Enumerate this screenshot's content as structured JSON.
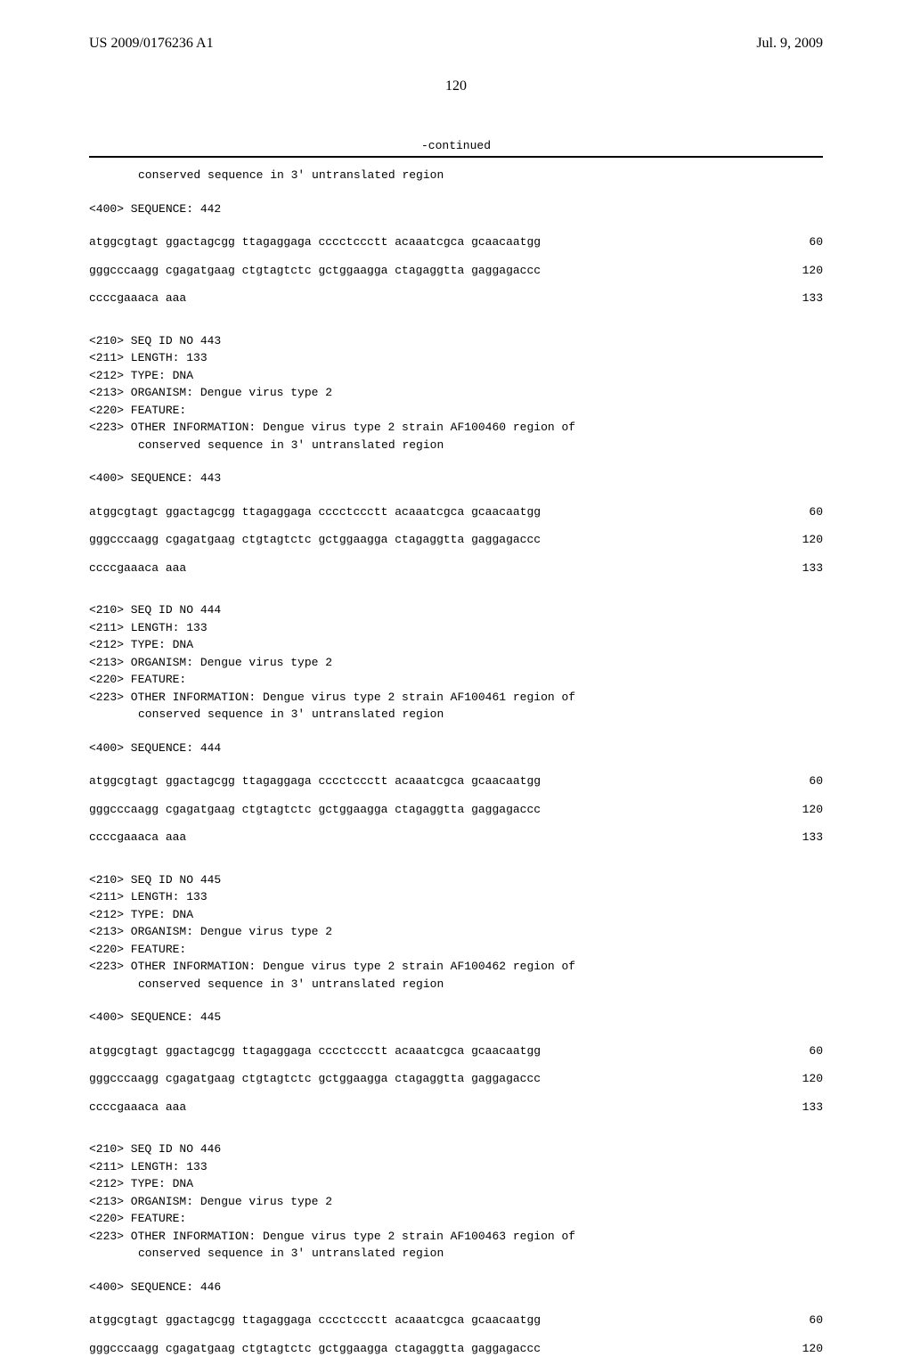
{
  "header": {
    "left": "US 2009/0176236 A1",
    "right": "Jul. 9, 2009"
  },
  "page_number": "120",
  "continued": "-continued",
  "intro_line": "conserved sequence in 3' untranslated region",
  "seq_label": "<400> SEQUENCE:",
  "seq_line1_text": "atggcgtagt ggactagcgg ttagaggaga cccctccctt acaaatcgca gcaacaatgg",
  "seq_line1_pos": "60",
  "seq_line2_text": "gggcccaagg cgagatgaag ctgtagtctc gctggaagga ctagaggtta gaggagaccc",
  "seq_line2_pos": "120",
  "seq_line3_text": "ccccgaaaca aaa",
  "seq_line3_pos": "133",
  "entries": [
    {
      "seq_no": "442",
      "meta": []
    },
    {
      "seq_no": "443",
      "meta": [
        "<210> SEQ ID NO 443",
        "<211> LENGTH: 133",
        "<212> TYPE: DNA",
        "<213> ORGANISM: Dengue virus type 2",
        "<220> FEATURE:",
        "<223> OTHER INFORMATION: Dengue virus type 2 strain AF100460 region of"
      ],
      "meta_indent": "conserved sequence in 3' untranslated region"
    },
    {
      "seq_no": "444",
      "meta": [
        "<210> SEQ ID NO 444",
        "<211> LENGTH: 133",
        "<212> TYPE: DNA",
        "<213> ORGANISM: Dengue virus type 2",
        "<220> FEATURE:",
        "<223> OTHER INFORMATION: Dengue virus type 2 strain AF100461 region of"
      ],
      "meta_indent": "conserved sequence in 3' untranslated region"
    },
    {
      "seq_no": "445",
      "meta": [
        "<210> SEQ ID NO 445",
        "<211> LENGTH: 133",
        "<212> TYPE: DNA",
        "<213> ORGANISM: Dengue virus type 2",
        "<220> FEATURE:",
        "<223> OTHER INFORMATION: Dengue virus type 2 strain AF100462 region of"
      ],
      "meta_indent": "conserved sequence in 3' untranslated region"
    },
    {
      "seq_no": "446",
      "meta": [
        "<210> SEQ ID NO 446",
        "<211> LENGTH: 133",
        "<212> TYPE: DNA",
        "<213> ORGANISM: Dengue virus type 2",
        "<220> FEATURE:",
        "<223> OTHER INFORMATION: Dengue virus type 2 strain AF100463 region of"
      ],
      "meta_indent": "conserved sequence in 3' untranslated region",
      "partial": true
    }
  ]
}
